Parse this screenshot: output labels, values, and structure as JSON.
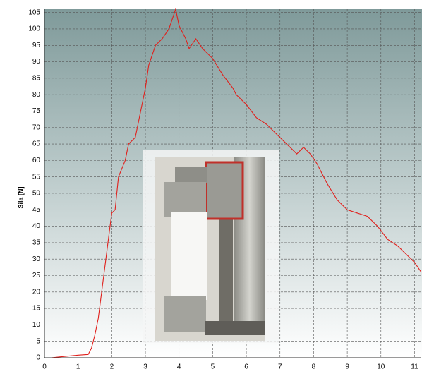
{
  "chart_data": {
    "type": "line",
    "ylabel": "Sila [N]",
    "x": [
      0.2,
      0.5,
      1.0,
      1.3,
      1.4,
      1.5,
      1.6,
      1.7,
      1.8,
      1.9,
      2.0,
      2.1,
      2.2,
      2.4,
      2.5,
      2.7,
      2.8,
      3.0,
      3.1,
      3.3,
      3.5,
      3.7,
      3.9,
      4.0,
      4.2,
      4.3,
      4.5,
      4.7,
      5.0,
      5.3,
      5.6,
      5.7,
      6.0,
      6.3,
      6.6,
      6.9,
      7.2,
      7.5,
      7.7,
      7.9,
      8.1,
      8.4,
      8.7,
      9.0,
      9.3,
      9.6,
      9.9,
      10.2,
      10.5,
      10.8,
      11.0,
      11.2
    ],
    "series": [
      {
        "color": "#e0201c",
        "values": [
          0,
          0.3,
          0.8,
          1,
          3,
          7,
          12,
          20,
          28,
          36,
          44,
          45,
          55,
          60,
          65,
          67,
          72,
          82,
          89,
          95,
          97,
          100,
          106,
          101,
          97,
          94,
          97,
          94,
          91,
          86,
          82,
          80,
          77,
          73,
          71,
          68,
          65,
          62,
          64,
          62,
          59,
          53,
          48,
          45,
          44,
          43,
          40,
          36,
          34,
          31,
          29,
          26
        ]
      }
    ],
    "xlim": [
      0,
      11.2
    ],
    "ylim": [
      0,
      106
    ],
    "xticks": [
      0,
      1,
      2,
      3,
      4,
      5,
      6,
      7,
      8,
      9,
      10,
      11
    ],
    "yticks": [
      0,
      5,
      10,
      15,
      20,
      25,
      30,
      35,
      40,
      45,
      50,
      55,
      60,
      65,
      70,
      75,
      80,
      85,
      90,
      95,
      100,
      105
    ],
    "grid": true
  }
}
